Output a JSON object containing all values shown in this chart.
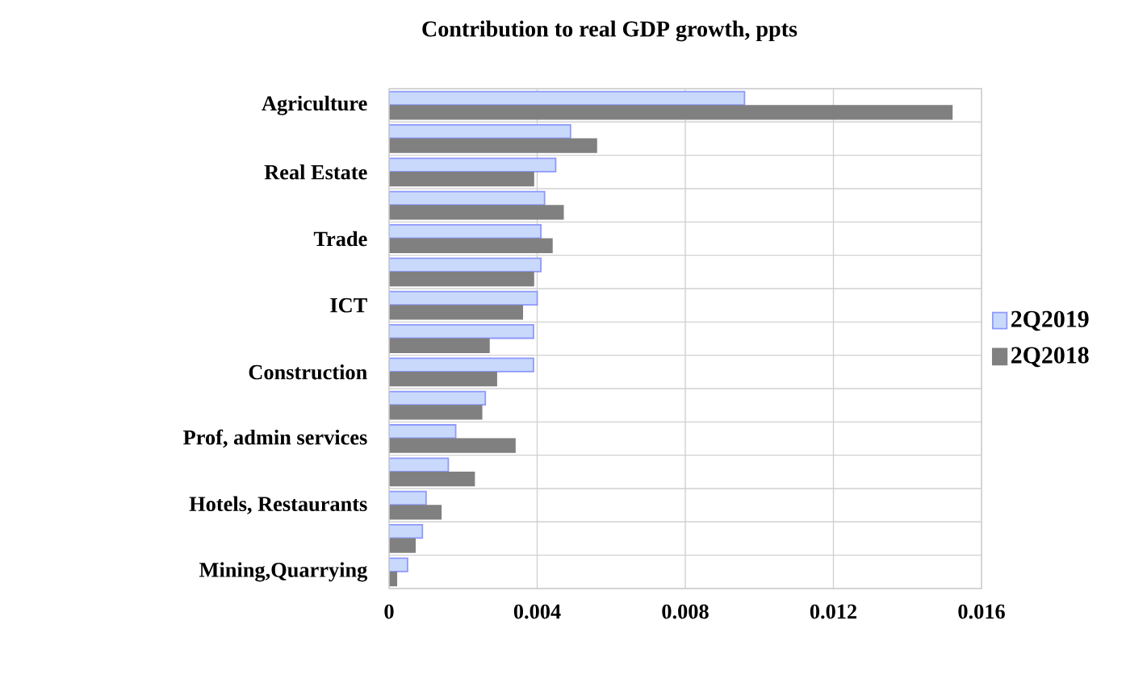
{
  "chart_data": {
    "type": "bar",
    "orientation": "horizontal",
    "title": "Contribution to real GDP growth, ppts",
    "categories": [
      "Agriculture",
      null,
      "Real Estate",
      null,
      "Trade",
      null,
      "ICT",
      null,
      "Construction",
      null,
      "Prof, admin services",
      null,
      "Hotels, Restaurants",
      null,
      "Mining,Quarrying"
    ],
    "series": [
      {
        "name": "2Q2019",
        "color": "#c9d9fc",
        "values": [
          0.0096,
          0.0049,
          0.0045,
          0.0042,
          0.0041,
          0.0041,
          0.004,
          0.0039,
          0.0039,
          0.0026,
          0.0018,
          0.0016,
          0.001,
          0.0009,
          0.0005
        ]
      },
      {
        "name": "2Q2018",
        "color": "#808080",
        "values": [
          0.0152,
          0.0056,
          0.0039,
          0.0047,
          0.0044,
          0.0039,
          0.0036,
          0.0027,
          0.0029,
          0.0025,
          0.0034,
          0.0023,
          0.0014,
          0.0007,
          0.0002
        ]
      }
    ],
    "xlim": [
      0,
      0.016
    ],
    "xticks": [
      0,
      0.004,
      0.008,
      0.012,
      0.016
    ],
    "grid": true,
    "legend": "right"
  }
}
